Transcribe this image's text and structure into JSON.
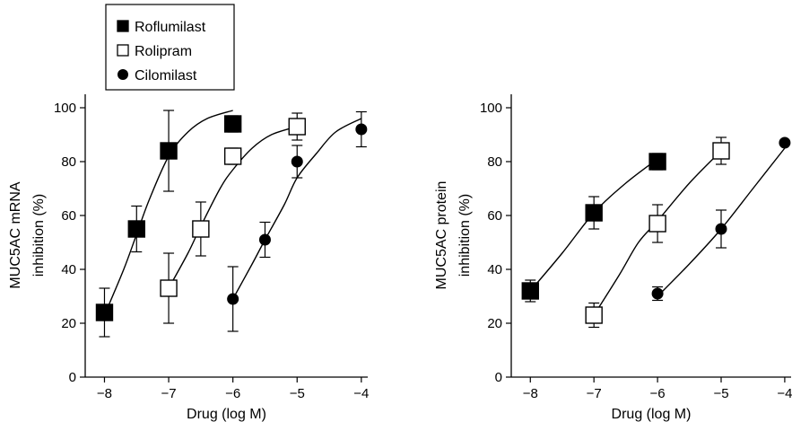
{
  "legend": {
    "items": [
      {
        "label": "Roflumilast",
        "marker": "filled-square"
      },
      {
        "label": "Rolipram",
        "marker": "open-square"
      },
      {
        "label": "Cilomilast",
        "marker": "filled-circle"
      }
    ]
  },
  "chart_data": [
    {
      "type": "scatter",
      "xlabel": "Drug (log M)",
      "ylabel_lines": [
        "MUC5AC mRNA",
        "inhibition (%)"
      ],
      "xlim": [
        -8.3,
        -3.9
      ],
      "ylim": [
        0,
        105
      ],
      "xticks": [
        -8,
        -7,
        -6,
        -5,
        -4
      ],
      "yticks": [
        0,
        20,
        40,
        60,
        80,
        100
      ],
      "xtick_labels": [
        "−8",
        "−7",
        "−6",
        "−5",
        "−4"
      ],
      "ytick_labels": [
        "0",
        "20",
        "40",
        "60",
        "80",
        "100"
      ],
      "grid": false,
      "series": [
        {
          "name": "Roflumilast",
          "marker": "filled-square",
          "x": [
            -8,
            -7.5,
            -7,
            -6
          ],
          "y": [
            24,
            55,
            84,
            94
          ],
          "err": [
            9,
            8.5,
            15,
            3
          ],
          "curve": [
            [
              -8,
              23
            ],
            [
              -7.7,
              40
            ],
            [
              -7.5,
              53
            ],
            [
              -7.3,
              66
            ],
            [
              -7,
              82
            ],
            [
              -6.7,
              91
            ],
            [
              -6.4,
              96
            ],
            [
              -6,
              99
            ]
          ]
        },
        {
          "name": "Rolipram",
          "marker": "open-square",
          "x": [
            -7,
            -6.5,
            -6,
            -5
          ],
          "y": [
            33,
            55,
            82,
            93
          ],
          "err": [
            13,
            10,
            3,
            5
          ],
          "curve": [
            [
              -7,
              33
            ],
            [
              -6.7,
              46
            ],
            [
              -6.5,
              56
            ],
            [
              -6.2,
              70
            ],
            [
              -6,
              77
            ],
            [
              -5.7,
              85
            ],
            [
              -5.4,
              90
            ],
            [
              -5,
              93
            ]
          ]
        },
        {
          "name": "Cilomilast",
          "marker": "filled-circle",
          "x": [
            -6,
            -5.5,
            -5,
            -4
          ],
          "y": [
            29,
            51,
            80,
            92
          ],
          "err": [
            12,
            6.5,
            6,
            6.5
          ],
          "curve": [
            [
              -6,
              29
            ],
            [
              -5.7,
              42
            ],
            [
              -5.5,
              51
            ],
            [
              -5.2,
              64
            ],
            [
              -5,
              74
            ],
            [
              -4.7,
              83
            ],
            [
              -4.4,
              91
            ],
            [
              -4,
              96
            ]
          ]
        }
      ]
    },
    {
      "type": "scatter",
      "xlabel": "Drug (log M)",
      "ylabel_lines": [
        "MUC5AC protein",
        "inhibition (%)"
      ],
      "xlim": [
        -8.3,
        -3.9
      ],
      "ylim": [
        0,
        105
      ],
      "xticks": [
        -8,
        -7,
        -6,
        -5,
        -4
      ],
      "yticks": [
        0,
        20,
        40,
        60,
        80,
        100
      ],
      "xtick_labels": [
        "−8",
        "−7",
        "−6",
        "−5",
        "−4"
      ],
      "ytick_labels": [
        "0",
        "20",
        "40",
        "60",
        "80",
        "100"
      ],
      "grid": false,
      "series": [
        {
          "name": "Roflumilast",
          "marker": "filled-square",
          "x": [
            -8,
            -7,
            -6
          ],
          "y": [
            32,
            61,
            80
          ],
          "err": [
            4,
            6,
            3
          ],
          "curve": [
            [
              -8,
              32
            ],
            [
              -7.5,
              46
            ],
            [
              -7,
              61
            ],
            [
              -6.5,
              72
            ],
            [
              -6,
              81
            ]
          ]
        },
        {
          "name": "Rolipram",
          "marker": "open-square",
          "x": [
            -7,
            -6,
            -5
          ],
          "y": [
            23,
            57,
            84
          ],
          "err": [
            4.5,
            7,
            5
          ],
          "curve": [
            [
              -7,
              23
            ],
            [
              -6.6,
              38
            ],
            [
              -6.3,
              50
            ],
            [
              -6,
              58
            ],
            [
              -5.5,
              72
            ],
            [
              -5,
              84
            ]
          ]
        },
        {
          "name": "Cilomilast",
          "marker": "filled-circle",
          "x": [
            -6,
            -5,
            -4
          ],
          "y": [
            31,
            55,
            87
          ],
          "err": [
            2.5,
            7,
            0
          ],
          "curve": [
            [
              -6,
              30
            ],
            [
              -5.5,
              42
            ],
            [
              -5,
              55
            ],
            [
              -4.5,
              70
            ],
            [
              -4,
              85
            ]
          ]
        }
      ]
    }
  ]
}
